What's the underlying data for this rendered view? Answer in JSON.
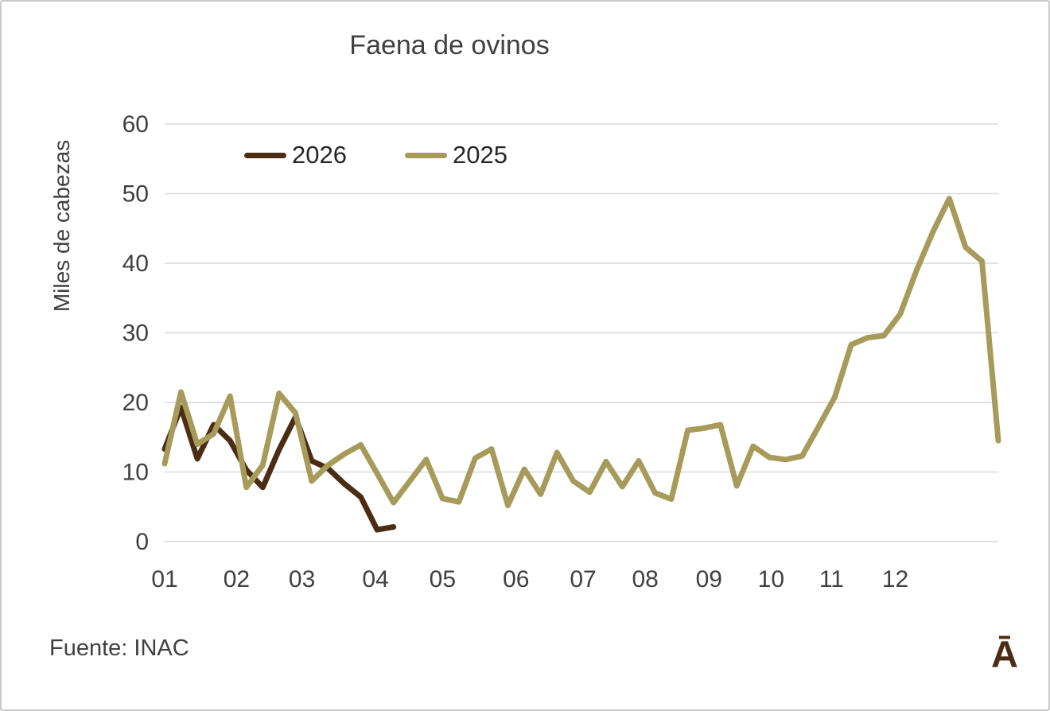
{
  "chart_data": {
    "type": "line",
    "title": "Faena de ovinos",
    "ylabel": "Miles de cabezas",
    "xlabel": "",
    "ylim": [
      0,
      60
    ],
    "yticks": [
      0,
      10,
      20,
      30,
      40,
      50,
      60
    ],
    "grid": "horizontal-only",
    "legend_position": "top-inside",
    "x_unit": "semana (weekly points)",
    "x_tick_labels": [
      "01",
      "02",
      "03",
      "04",
      "05",
      "06",
      "07",
      "08",
      "09",
      "10",
      "11",
      "12"
    ],
    "x_tick_week_positions": [
      0,
      4.4,
      8.4,
      12.9,
      17.0,
      21.5,
      25.6,
      29.4,
      33.3,
      37.1,
      40.8,
      44.7
    ],
    "series": [
      {
        "name": "2026",
        "color": "#4a2d13",
        "week_start": 0,
        "values": [
          13.3,
          19.3,
          11.9,
          16.8,
          14.5,
          10.3,
          7.8,
          13.2,
          17.9,
          11.6,
          10.5,
          8.3,
          6.4,
          1.7,
          2.1
        ]
      },
      {
        "name": "2025",
        "color": "#a79b5b",
        "week_start": 0,
        "values": [
          11.2,
          21.5,
          14.0,
          15.5,
          20.9,
          7.8,
          11.0,
          21.3,
          18.5,
          8.7,
          11.0,
          12.6,
          13.9,
          9.8,
          5.6,
          8.7,
          11.8,
          6.2,
          5.7,
          12.0,
          13.3,
          5.2,
          10.4,
          6.8,
          12.8,
          8.7,
          7.1,
          11.5,
          7.9,
          11.6,
          7.0,
          6.1,
          16.0,
          16.3,
          16.8,
          8.0,
          13.7,
          12.1,
          11.8,
          12.3,
          16.5,
          20.8,
          28.3,
          29.3,
          29.6,
          32.7,
          39.0,
          44.5,
          49.3,
          42.3,
          40.3,
          14.5
        ]
      }
    ]
  },
  "footer": {
    "source": "Fuente: INAC"
  },
  "branding": {
    "logo_glyph": "Ā"
  },
  "colors": {
    "gridline": "#d9d9d9",
    "axis_text": "#404040",
    "title_text": "#404040",
    "frame_border": "#c9c9c9",
    "logo": "#4b2c15"
  }
}
